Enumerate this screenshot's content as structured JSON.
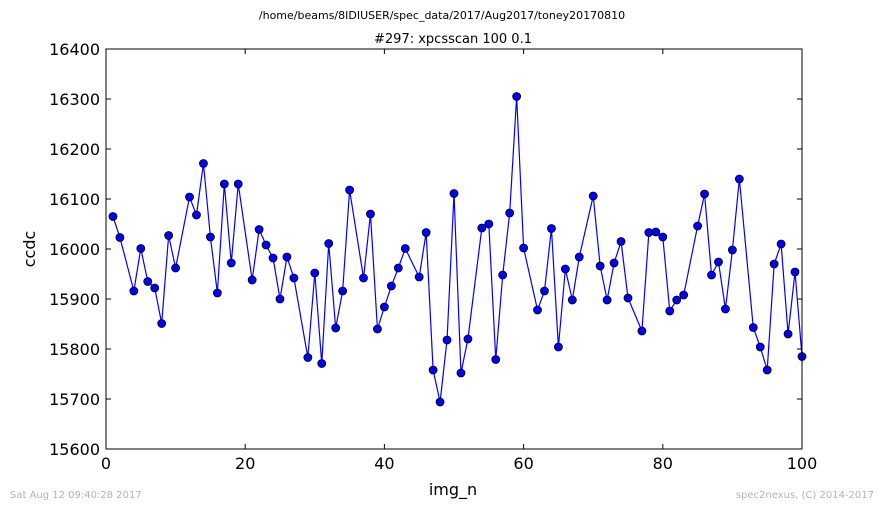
{
  "page": {
    "path": "/home/beams/8IDIUSER/spec_data/2017/Aug2017/toney20170810",
    "timestamp": "Sat Aug 12 09:40:28 2017",
    "credit": "spec2nexus, (C) 2014-2017"
  },
  "colors": {
    "series": "#0000ff",
    "marker_fill": "#0000ff",
    "marker_edge": "#000000",
    "footer_text": "#b3b3b3"
  },
  "chart_data": {
    "type": "line",
    "title": "#297: xpcsscan 100 0.1",
    "xlabel": "img_n",
    "ylabel": "ccdc",
    "xlim": [
      0,
      100
    ],
    "ylim": [
      15600,
      16400
    ],
    "xticks": [
      0,
      20,
      40,
      60,
      80,
      100
    ],
    "yticks": [
      15600,
      15700,
      15800,
      15900,
      16000,
      16100,
      16200,
      16300,
      16400
    ],
    "marker": "circle",
    "grid": false,
    "series": [
      {
        "x": [
          1,
          2,
          4,
          5,
          6,
          7,
          8,
          9,
          10,
          12,
          13,
          14,
          15,
          16,
          17,
          18,
          19,
          21,
          22,
          23,
          24,
          25,
          26,
          27,
          29,
          30,
          31,
          32,
          33,
          34,
          35,
          37,
          38,
          39,
          40,
          41,
          42,
          43,
          45,
          46,
          47,
          48,
          49,
          50,
          51,
          52,
          54,
          55,
          56,
          57,
          58,
          59,
          60,
          62,
          63,
          64,
          65,
          66,
          67,
          68,
          70,
          71,
          72,
          73,
          74,
          75,
          77,
          78,
          79,
          80,
          81,
          82,
          83,
          85,
          86,
          87,
          88,
          89,
          90,
          91,
          93,
          94,
          95,
          96,
          97,
          98,
          99,
          100
        ],
        "y": [
          16065,
          16023,
          15916,
          16001,
          15935,
          15922,
          15851,
          16027,
          15962,
          16104,
          16068,
          16171,
          16024,
          15912,
          16130,
          15972,
          16130,
          15938,
          16039,
          16008,
          15982,
          15900,
          15984,
          15942,
          15783,
          15952,
          15771,
          16011,
          15842,
          15916,
          16118,
          15942,
          16070,
          15840,
          15884,
          15926,
          15962,
          16001,
          15944,
          16033,
          15758,
          15694,
          15818,
          16111,
          15752,
          15820,
          16042,
          16050,
          15779,
          15948,
          16072,
          16305,
          16002,
          15878,
          15916,
          16041,
          15804,
          15960,
          15898,
          15984,
          16106,
          15966,
          15898,
          15972,
          16015,
          15902,
          15836,
          16033,
          16034,
          16024,
          15876,
          15898,
          15908,
          16046,
          16110,
          15948,
          15974,
          15880,
          15998,
          16140,
          15843,
          15804,
          15758,
          15970,
          16010,
          15830,
          15954,
          15785
        ]
      }
    ]
  }
}
